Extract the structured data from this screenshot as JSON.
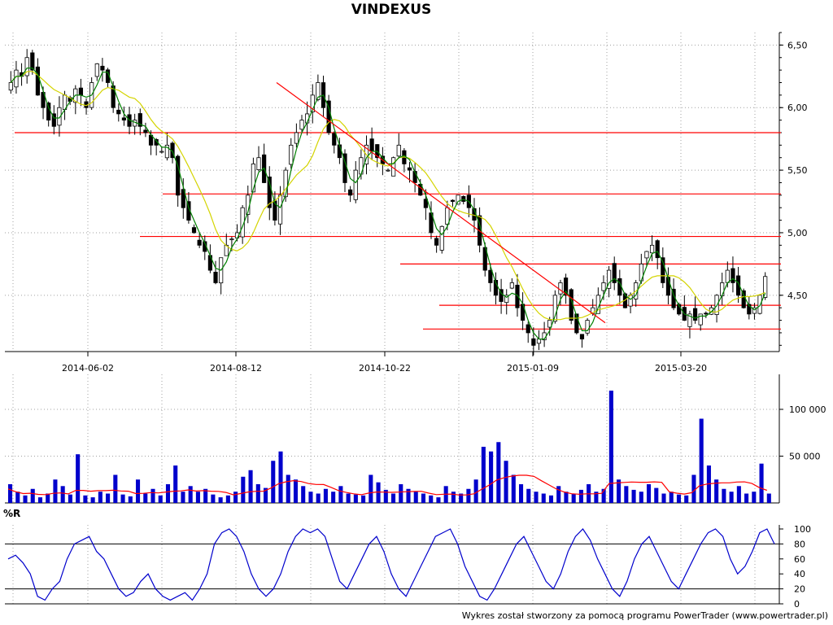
{
  "title": "VINDEXUS",
  "footer": "Wykres został stworzony za pomocą programu PowerTrader (www.powertrader.pl)",
  "colors": {
    "candle_up": "#ffffff",
    "candle_down": "#000000",
    "ma_short": "#008000",
    "ma_long": "#d4d400",
    "levels": "#ff0000",
    "volume_bar": "#0000cc",
    "volume_avg": "#ff0000",
    "wr_line": "#0000cc"
  },
  "chart_data": [
    {
      "type": "candlestick",
      "title": "VINDEXUS",
      "x_tick_labels": [
        "2014-06-02",
        "2014-08-12",
        "2014-10-22",
        "2015-01-09",
        "2015-03-20"
      ],
      "y_tick_labels": [
        "6,50",
        "6,00",
        "5,50",
        "5,00",
        "4,50"
      ],
      "ylim": [
        4.05,
        6.6
      ],
      "grid": true,
      "close_approx": [
        6.2,
        6.3,
        6.25,
        6.4,
        6.3,
        6.1,
        6.0,
        5.9,
        5.85,
        6.0,
        6.1,
        6.05,
        6.15,
        6.1,
        6.0,
        6.2,
        6.35,
        6.3,
        6.2,
        6.0,
        5.95,
        5.9,
        5.85,
        5.9,
        5.85,
        5.8,
        5.7,
        5.7,
        5.65,
        5.7,
        5.6,
        5.3,
        5.2,
        5.1,
        5.0,
        4.9,
        4.85,
        4.7,
        4.6,
        4.8,
        4.9,
        4.95,
        5.0,
        5.2,
        5.3,
        5.55,
        5.6,
        5.4,
        5.2,
        5.1,
        5.3,
        5.5,
        5.7,
        5.8,
        5.9,
        5.95,
        6.1,
        6.2,
        6.0,
        5.8,
        5.7,
        5.6,
        5.4,
        5.3,
        5.5,
        5.6,
        5.7,
        5.65,
        5.6,
        5.55,
        5.5,
        5.6,
        5.7,
        5.55,
        5.5,
        5.4,
        5.3,
        5.2,
        5.0,
        4.9,
        5.05,
        5.2,
        5.25,
        5.3,
        5.25,
        5.2,
        5.1,
        4.9,
        4.7,
        4.6,
        4.5,
        4.45,
        4.5,
        4.6,
        4.4,
        4.3,
        4.2,
        4.1,
        4.15,
        4.2,
        4.3,
        4.5,
        4.6,
        4.5,
        4.3,
        4.2,
        4.15,
        4.3,
        4.4,
        4.5,
        4.6,
        4.7,
        4.6,
        4.5,
        4.4,
        4.5,
        4.6,
        4.75,
        4.85,
        4.9,
        4.8,
        4.6,
        4.5,
        4.4,
        4.35,
        4.3,
        4.35,
        4.3,
        4.35,
        4.35,
        4.4,
        4.5,
        4.6,
        4.7,
        4.6,
        4.5,
        4.4,
        4.35,
        4.4,
        4.5,
        4.65
      ],
      "horizontal_levels": [
        5.8,
        5.31,
        4.97,
        4.75,
        4.42,
        4.23
      ],
      "trendline": {
        "from": [
          "2014-08-19",
          6.2
        ],
        "to": [
          "2015-02-06",
          4.28
        ]
      },
      "series": [
        {
          "type": "line",
          "role": "short moving average",
          "values_follow": "close"
        },
        {
          "type": "line",
          "role": "long moving average",
          "values_follow": "close"
        }
      ]
    },
    {
      "type": "bar",
      "y_tick_labels": [
        "100 000",
        "50 000"
      ],
      "ylim": [
        0,
        120000
      ],
      "values_approx": [
        20000,
        12000,
        8000,
        15000,
        6000,
        10000,
        25000,
        18000,
        9000,
        52000,
        8000,
        6000,
        12000,
        10000,
        30000,
        9000,
        7000,
        25000,
        10000,
        15000,
        8000,
        20000,
        40000,
        12000,
        18000,
        12000,
        15000,
        9000,
        6000,
        8000,
        12000,
        28000,
        35000,
        20000,
        16000,
        45000,
        55000,
        30000,
        25000,
        18000,
        12000,
        10000,
        15000,
        12000,
        18000,
        10000,
        9000,
        8000,
        30000,
        22000,
        14000,
        10000,
        20000,
        15000,
        12000,
        10000,
        8000,
        6000,
        18000,
        12000,
        10000,
        15000,
        25000,
        60000,
        55000,
        65000,
        45000,
        30000,
        20000,
        15000,
        12000,
        10000,
        8000,
        18000,
        12000,
        10000,
        14000,
        20000,
        12000,
        15000,
        120000,
        25000,
        18000,
        14000,
        12000,
        20000,
        16000,
        10000,
        12000,
        9000,
        8000,
        30000,
        90000,
        40000,
        25000,
        15000,
        12000,
        18000,
        10000,
        12000,
        42000,
        10000
      ],
      "grid": true
    },
    {
      "type": "line",
      "label": "%R",
      "y_tick_labels": [
        "100",
        "80",
        "60",
        "40",
        "20",
        "0"
      ],
      "ylim": [
        0,
        100
      ],
      "reference_lines": [
        80,
        20
      ],
      "values_approx": [
        60,
        65,
        55,
        40,
        10,
        5,
        20,
        30,
        60,
        80,
        85,
        90,
        70,
        60,
        40,
        20,
        10,
        15,
        30,
        40,
        20,
        10,
        5,
        10,
        15,
        5,
        20,
        40,
        80,
        95,
        100,
        90,
        70,
        40,
        20,
        10,
        20,
        40,
        70,
        90,
        100,
        95,
        100,
        90,
        60,
        30,
        20,
        40,
        60,
        80,
        90,
        70,
        40,
        20,
        10,
        30,
        50,
        70,
        90,
        95,
        100,
        80,
        50,
        30,
        10,
        5,
        20,
        40,
        60,
        80,
        90,
        70,
        50,
        30,
        20,
        40,
        70,
        90,
        100,
        85,
        60,
        40,
        20,
        10,
        30,
        60,
        80,
        90,
        70,
        50,
        30,
        20,
        40,
        60,
        80,
        95,
        100,
        90,
        60,
        40,
        50,
        70,
        95,
        100,
        80
      ]
    }
  ]
}
